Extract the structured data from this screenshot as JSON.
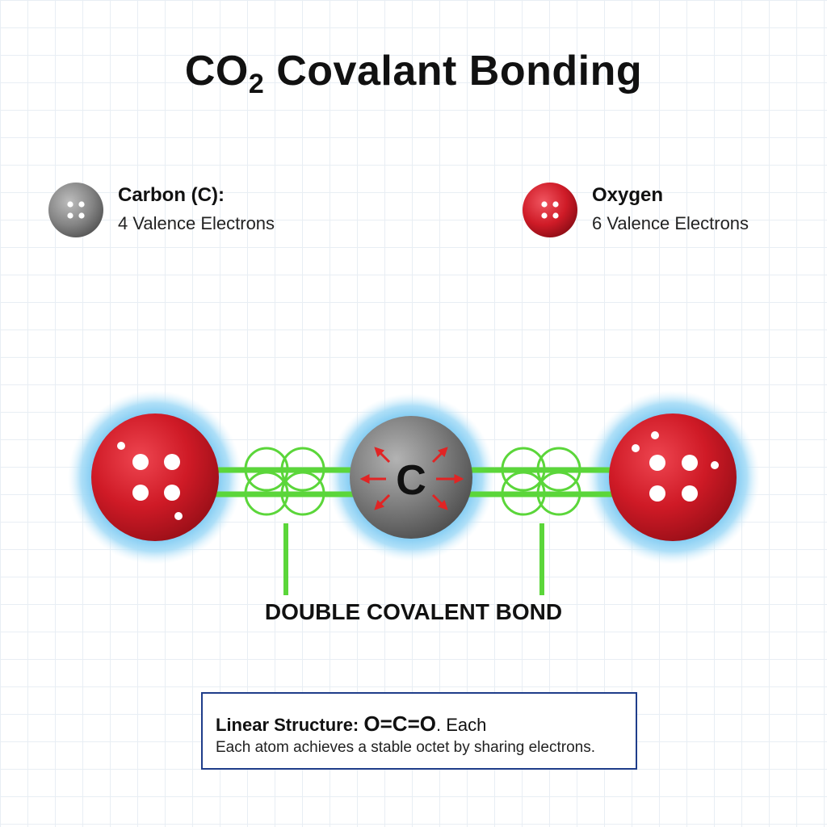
{
  "title": {
    "main_prefix": "CO",
    "subscript": "2",
    "main_suffix": " Covalant Bonding"
  },
  "legend": {
    "carbon": {
      "name": "Carbon (C):",
      "description": "4 Valence Electrons",
      "color": "#8a8a8a"
    },
    "oxygen": {
      "name": "Oxygen",
      "description": "6 Valence Electrons",
      "color": "#d11f2a"
    }
  },
  "diagram": {
    "carbon_symbol": "C",
    "bond_label": "DOUBLE COVALENT BOND",
    "glow_color": "#8fd2f5",
    "bond_color": "#5bd63a",
    "arrow_color": "#e12424"
  },
  "info": {
    "label": "Linear Structure:",
    "formula": "O=C=O",
    "trailing": ". Each",
    "sentence": "Each atom achieves a stable octet by sharing electrons."
  }
}
